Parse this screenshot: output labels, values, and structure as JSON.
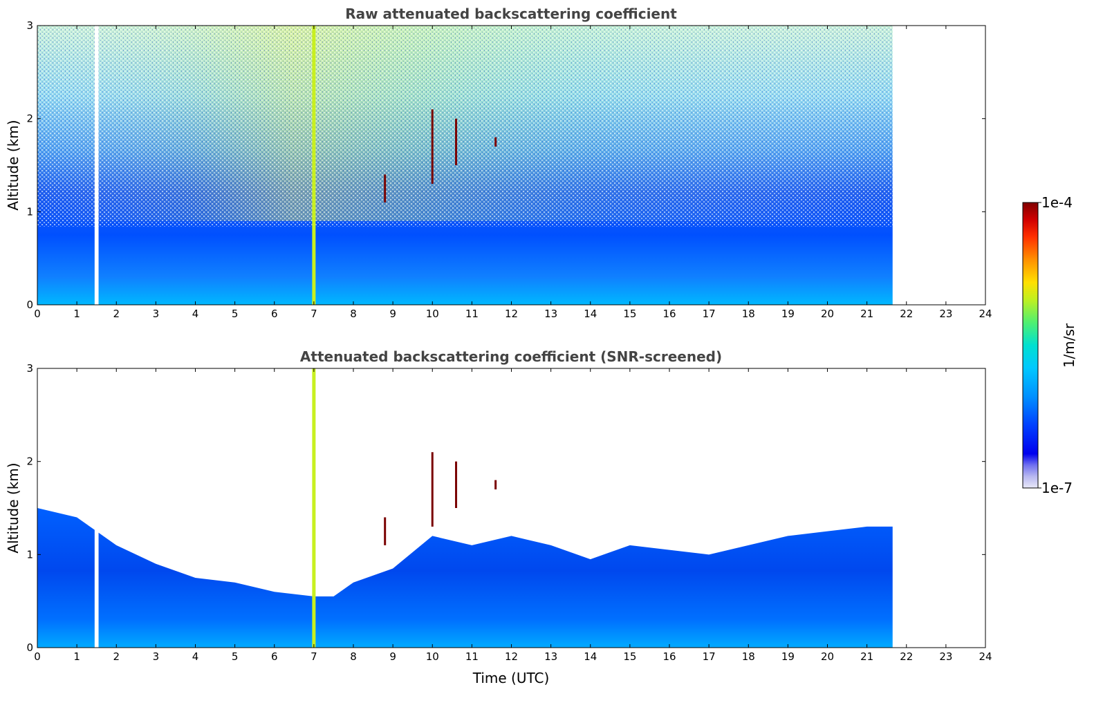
{
  "chart_data": [
    {
      "type": "heatmap",
      "title": "Raw attenuated backscattering coefficient",
      "xlabel": "",
      "ylabel": "Altitude (km)",
      "xlim": [
        0,
        24
      ],
      "ylim": [
        0,
        3
      ],
      "x_ticks": [
        "0",
        "1",
        "2",
        "3",
        "4",
        "5",
        "6",
        "7",
        "8",
        "9",
        "10",
        "11",
        "12",
        "13",
        "14",
        "15",
        "16",
        "17",
        "18",
        "19",
        "20",
        "21",
        "22",
        "23",
        "24"
      ],
      "y_ticks": [
        "0",
        "1",
        "2",
        "3"
      ],
      "data_extent_hours": [
        0,
        21.65
      ],
      "data_gap_hours": [
        1.45,
        1.55
      ],
      "features": [
        {
          "time": 7.0,
          "altitude_range": [
            0,
            3
          ],
          "description_level": "high"
        },
        {
          "time": 8.8,
          "altitude_range": [
            1.1,
            1.4
          ],
          "description_level": "max"
        },
        {
          "time": 10.0,
          "altitude_range": [
            1.3,
            2.1
          ],
          "description_level": "max"
        },
        {
          "time": 10.6,
          "altitude_range": [
            1.5,
            2.0
          ],
          "description_level": "max"
        },
        {
          "time": 11.6,
          "altitude_range": [
            1.7,
            1.8
          ],
          "description_level": "max"
        }
      ],
      "grid": false
    },
    {
      "type": "heatmap",
      "title": "Attenuated backscattering coefficient (SNR-screened)",
      "xlabel": "Time (UTC)",
      "ylabel": "Altitude (km)",
      "xlim": [
        0,
        24
      ],
      "ylim": [
        0,
        3
      ],
      "x_ticks": [
        "0",
        "1",
        "2",
        "3",
        "4",
        "5",
        "6",
        "7",
        "8",
        "9",
        "10",
        "11",
        "12",
        "13",
        "14",
        "15",
        "16",
        "17",
        "18",
        "19",
        "20",
        "21",
        "22",
        "23",
        "24"
      ],
      "y_ticks": [
        "0",
        "1",
        "2",
        "3"
      ],
      "data_extent_hours": [
        0,
        21.65
      ],
      "data_gap_hours": [
        1.45,
        1.55
      ],
      "boundary_layer_top_km": [
        [
          0,
          1.5
        ],
        [
          1,
          1.4
        ],
        [
          2,
          1.1
        ],
        [
          3,
          0.9
        ],
        [
          4,
          0.75
        ],
        [
          5,
          0.7
        ],
        [
          6,
          0.6
        ],
        [
          7,
          0.55
        ],
        [
          7.5,
          0.55
        ],
        [
          8,
          0.7
        ],
        [
          9,
          0.85
        ],
        [
          10,
          1.2
        ],
        [
          11,
          1.1
        ],
        [
          12,
          1.2
        ],
        [
          13,
          1.1
        ],
        [
          14,
          0.95
        ],
        [
          15,
          1.1
        ],
        [
          16,
          1.05
        ],
        [
          17,
          1.0
        ],
        [
          18,
          1.1
        ],
        [
          19,
          1.2
        ],
        [
          20,
          1.25
        ],
        [
          21,
          1.3
        ],
        [
          21.65,
          1.3
        ]
      ],
      "grid": false
    }
  ],
  "colorbar": {
    "label": "1/m/sr",
    "max_label": "1e-4",
    "min_label": "1e-7",
    "colors": [
      "#e8e8f8",
      "#b8b8f0",
      "#8080f0",
      "#0000ee",
      "#0044ff",
      "#0088ff",
      "#00bbff",
      "#00ddee",
      "#33ee99",
      "#99ee44",
      "#eeee00",
      "#ffaa00",
      "#ff5500",
      "#dd0000",
      "#800000"
    ]
  },
  "colors": {
    "title": "#444444",
    "white_gap": "#ffffff"
  }
}
